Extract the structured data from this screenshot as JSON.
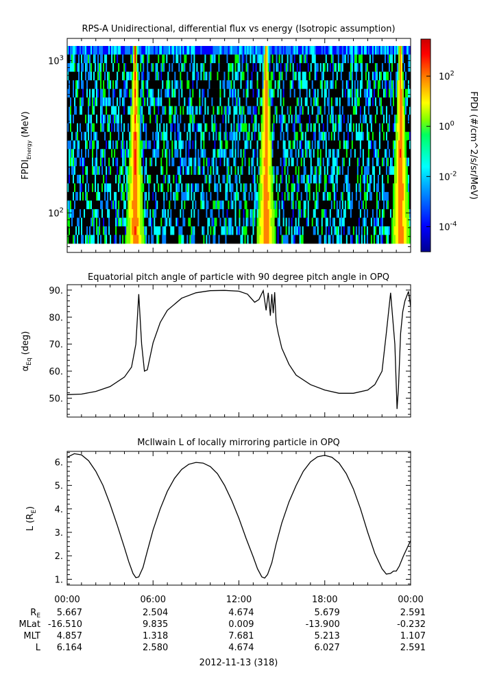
{
  "colors": {
    "background": "#ffffff",
    "axis": "#000000",
    "line": "#000000",
    "spectrogram_fill": "#000000",
    "colorscale": [
      "#00008f",
      "#0000ff",
      "#0080ff",
      "#00ffff",
      "#00ff00",
      "#80ff00",
      "#ffff00",
      "#ff8000",
      "#ff0000",
      "#8f0000"
    ]
  },
  "chart_data": [
    {
      "type": "heatmap",
      "title": "RPS-A Unidirectional, differential flux vs energy (Isotropic assumption)",
      "ylabel_main": "FPDI",
      "ylabel_sub": "Energy",
      "ylabel_unit": "(MeV)",
      "yscale": "log",
      "ylim": [
        55,
        1400
      ],
      "yticks": [
        {
          "value": 100,
          "base": "10",
          "exp": "2"
        },
        {
          "value": 1000,
          "base": "10",
          "exp": "3"
        }
      ],
      "xlim": [
        0,
        24
      ],
      "energy_bins": 23,
      "bright_bands_hours": [
        4.75,
        13.9,
        23.3
      ],
      "colorbar": {
        "label": "FPDI (#/cm^2/s/sr/MeV)",
        "scale": "log",
        "range": [
          1e-05,
          3000
        ],
        "ticks": [
          {
            "value": 100,
            "base": "10",
            "exp": "2"
          },
          {
            "value": 1,
            "base": "10",
            "exp": "0"
          },
          {
            "value": 0.01,
            "base": "10",
            "exp": "-2"
          },
          {
            "value": 0.0001,
            "base": "10",
            "exp": "-4"
          }
        ]
      }
    },
    {
      "type": "line",
      "title": "Equatorial pitch angle of particle with 90 degree pitch angle in OPQ",
      "ylabel_main": "α",
      "ylabel_sub": "Eq",
      "ylabel_unit": "(deg)",
      "ylim": [
        43,
        92
      ],
      "yticks": [
        "50.",
        "60.",
        "70.",
        "80.",
        "90."
      ],
      "xlim": [
        0,
        24
      ],
      "x": [
        0,
        1,
        2,
        3,
        4,
        4.5,
        4.8,
        5.0,
        5.2,
        5.4,
        5.6,
        6,
        6.5,
        7,
        8,
        9,
        10,
        11,
        12,
        12.6,
        13.1,
        13.4,
        13.7,
        13.9,
        14.05,
        14.2,
        14.3,
        14.4,
        14.5,
        14.6,
        14.75,
        15,
        15.5,
        16,
        17,
        18,
        19,
        20,
        21,
        21.5,
        22,
        22.3,
        22.6,
        22.9,
        23.05,
        23.15,
        23.3,
        23.45,
        23.6,
        23.85,
        24
      ],
      "y": [
        51.3,
        51.5,
        52.5,
        54.3,
        57.8,
        61.5,
        70.0,
        88.5,
        70.0,
        60.0,
        60.5,
        70.5,
        78.0,
        82.5,
        87.0,
        89.0,
        89.8,
        89.9,
        89.6,
        88.5,
        85.5,
        86.5,
        89.8,
        82.5,
        89.0,
        80.5,
        88.5,
        81.5,
        89.2,
        78.0,
        74.0,
        68.5,
        62.5,
        58.5,
        55.0,
        53.0,
        51.8,
        51.8,
        53.0,
        55.0,
        60.0,
        74.0,
        89.0,
        70.0,
        46.0,
        54.0,
        74.0,
        82.0,
        86.0,
        89.5,
        84.0
      ]
    },
    {
      "type": "line",
      "title": "McIlwain L of locally mirroring particle in OPQ",
      "ylabel_main": "L (R",
      "ylabel_sub": "E",
      "ylabel_unit": ")",
      "ylim": [
        0.75,
        6.45
      ],
      "yticks": [
        "1.",
        "2.",
        "3.",
        "4.",
        "5.",
        "6."
      ],
      "xlim": [
        0,
        24
      ],
      "x": [
        0,
        0.5,
        1,
        1.5,
        2,
        2.5,
        3,
        3.5,
        4,
        4.3,
        4.6,
        4.8,
        5.0,
        5.3,
        5.6,
        6,
        6.5,
        7,
        7.5,
        8,
        8.5,
        9,
        9.5,
        10,
        10.5,
        11,
        11.5,
        12,
        12.5,
        13,
        13.3,
        13.6,
        13.8,
        14.0,
        14.3,
        14.6,
        15,
        15.5,
        16,
        16.5,
        17,
        17.5,
        18,
        18.5,
        19,
        19.5,
        20,
        20.5,
        21,
        21.5,
        22,
        22.3,
        22.6,
        22.8,
        23.0,
        23.2,
        23.5,
        24
      ],
      "y": [
        6.2,
        6.35,
        6.3,
        6.05,
        5.6,
        5.0,
        4.2,
        3.3,
        2.35,
        1.75,
        1.25,
        1.07,
        1.1,
        1.5,
        2.2,
        3.1,
        4.0,
        4.75,
        5.3,
        5.68,
        5.9,
        5.98,
        5.95,
        5.8,
        5.5,
        5.0,
        4.35,
        3.6,
        2.75,
        1.95,
        1.45,
        1.1,
        1.05,
        1.2,
        1.7,
        2.5,
        3.4,
        4.3,
        5.0,
        5.6,
        6.0,
        6.22,
        6.28,
        6.2,
        5.95,
        5.5,
        4.85,
        4.0,
        3.0,
        2.1,
        1.45,
        1.22,
        1.25,
        1.35,
        1.35,
        1.55,
        2.0,
        2.65
      ]
    }
  ],
  "time_axis": {
    "tick_labels": [
      "00:00",
      "06:00",
      "12:00",
      "18:00",
      "00:00"
    ],
    "date_label": "2012-11-13 (318)"
  },
  "ephemeris": {
    "rows": [
      {
        "label": "R",
        "label_sub": "E",
        "values": [
          "5.667",
          "2.504",
          "4.674",
          "5.679",
          "2.591"
        ]
      },
      {
        "label": "MLat",
        "label_sub": "",
        "values": [
          "-16.510",
          "9.835",
          "0.009",
          "-13.900",
          "-0.232"
        ]
      },
      {
        "label": "MLT",
        "label_sub": "",
        "values": [
          "4.857",
          "1.318",
          "7.681",
          "5.213",
          "1.107"
        ]
      },
      {
        "label": "L",
        "label_sub": "",
        "values": [
          "6.164",
          "2.580",
          "4.674",
          "6.027",
          "2.591"
        ]
      }
    ]
  }
}
